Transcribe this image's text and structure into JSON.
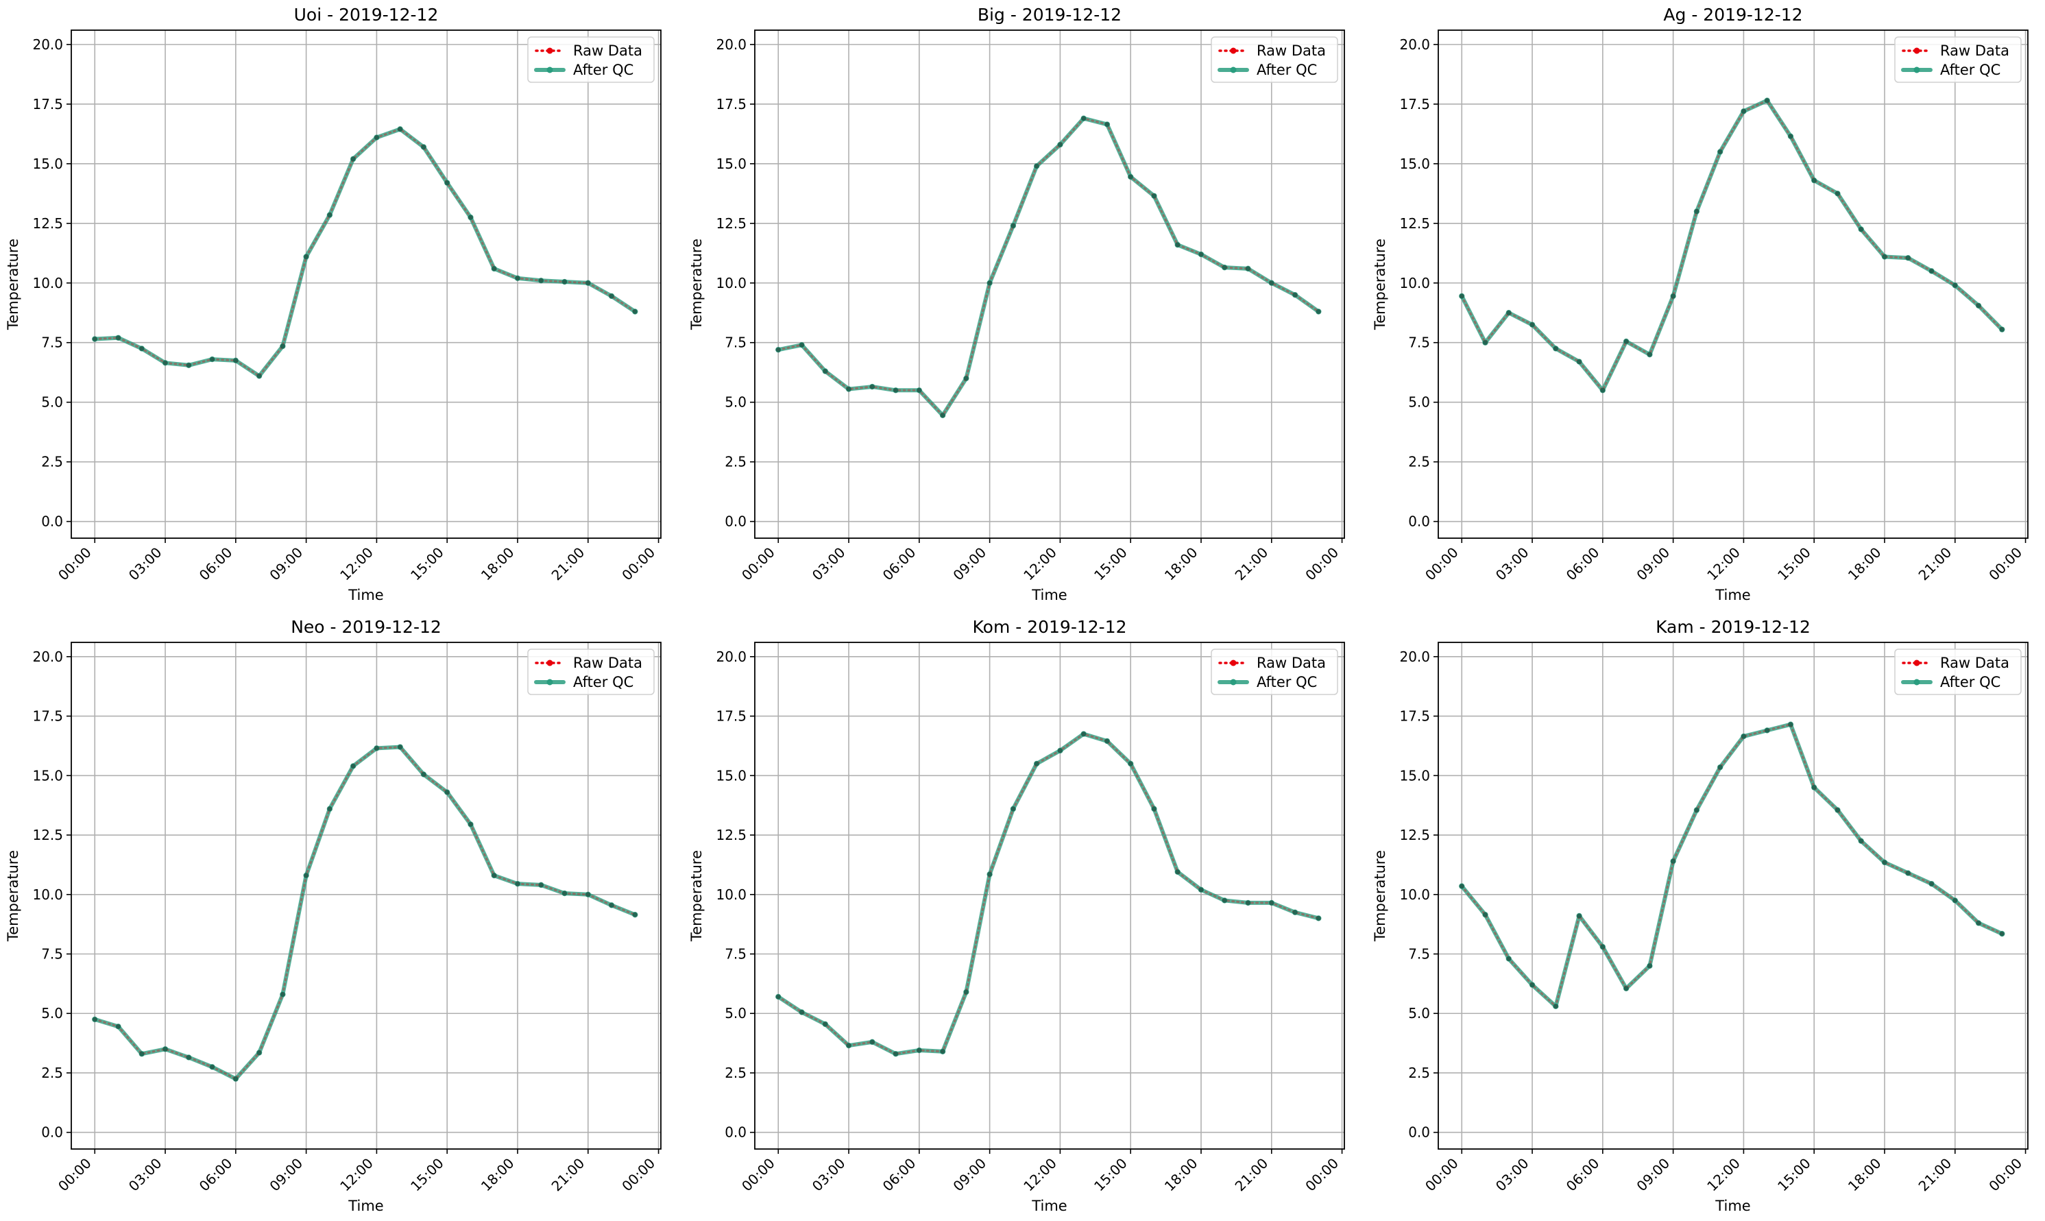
{
  "chart_data": [
    {
      "type": "line",
      "title": "Uoi - 2019-12-12",
      "xlabel": "Time",
      "ylabel": "Temperature",
      "ylim": [
        -0.7,
        20.6
      ],
      "xlim_hours": [
        -1.0,
        24.1
      ],
      "yticks": [
        "0.0",
        "2.5",
        "5.0",
        "7.5",
        "10.0",
        "12.5",
        "15.0",
        "17.5",
        "20.0"
      ],
      "xticks": [
        "00:00",
        "03:00",
        "06:00",
        "09:00",
        "12:00",
        "15:00",
        "18:00",
        "21:00",
        "00:00"
      ],
      "grid": true,
      "legend": "top-right",
      "x": [
        "00:00",
        "01:00",
        "02:00",
        "03:00",
        "04:00",
        "05:00",
        "06:00",
        "07:00",
        "08:00",
        "09:00",
        "10:00",
        "11:00",
        "12:00",
        "13:00",
        "14:00",
        "15:00",
        "16:00",
        "17:00",
        "18:00",
        "19:00",
        "20:00",
        "21:00",
        "22:00",
        "23:00"
      ],
      "series": [
        {
          "name": "Raw Data",
          "color": "#e8000b",
          "style": "dotted",
          "values": [
            7.65,
            7.7,
            7.25,
            6.65,
            6.55,
            6.8,
            6.75,
            6.1,
            7.35,
            11.1,
            12.85,
            15.2,
            16.1,
            16.45,
            15.7,
            14.2,
            12.75,
            10.6,
            10.2,
            10.1,
            10.05,
            10.0,
            9.45,
            8.8
          ]
        },
        {
          "name": "After QC",
          "color": "#2a9d7f",
          "style": "solid",
          "values": [
            7.65,
            7.7,
            7.25,
            6.65,
            6.55,
            6.8,
            6.75,
            6.1,
            7.35,
            11.1,
            12.85,
            15.2,
            16.1,
            16.45,
            15.7,
            14.2,
            12.75,
            10.6,
            10.2,
            10.1,
            10.05,
            10.0,
            9.45,
            8.8
          ]
        }
      ]
    },
    {
      "type": "line",
      "title": "Big - 2019-12-12",
      "xlabel": "Time",
      "ylabel": "Temperature",
      "ylim": [
        -0.7,
        20.6
      ],
      "xlim_hours": [
        -1.0,
        24.1
      ],
      "yticks": [
        "0.0",
        "2.5",
        "5.0",
        "7.5",
        "10.0",
        "12.5",
        "15.0",
        "17.5",
        "20.0"
      ],
      "xticks": [
        "00:00",
        "03:00",
        "06:00",
        "09:00",
        "12:00",
        "15:00",
        "18:00",
        "21:00",
        "00:00"
      ],
      "grid": true,
      "legend": "top-right",
      "x": [
        "00:00",
        "01:00",
        "02:00",
        "03:00",
        "04:00",
        "05:00",
        "06:00",
        "07:00",
        "08:00",
        "09:00",
        "10:00",
        "11:00",
        "12:00",
        "13:00",
        "14:00",
        "15:00",
        "16:00",
        "17:00",
        "18:00",
        "19:00",
        "20:00",
        "21:00",
        "22:00",
        "23:00"
      ],
      "series": [
        {
          "name": "Raw Data",
          "color": "#e8000b",
          "style": "dotted",
          "values": [
            7.2,
            7.4,
            6.3,
            5.55,
            5.65,
            5.5,
            5.5,
            4.45,
            6.0,
            10.0,
            12.4,
            14.9,
            15.8,
            16.9,
            16.65,
            14.45,
            13.65,
            11.6,
            11.2,
            10.65,
            10.6,
            10.0,
            9.5,
            8.8
          ]
        },
        {
          "name": "After QC",
          "color": "#2a9d7f",
          "style": "solid",
          "values": [
            7.2,
            7.4,
            6.3,
            5.55,
            5.65,
            5.5,
            5.5,
            4.45,
            6.0,
            10.0,
            12.4,
            14.9,
            15.8,
            16.9,
            16.65,
            14.45,
            13.65,
            11.6,
            11.2,
            10.65,
            10.6,
            10.0,
            9.5,
            8.8
          ]
        }
      ]
    },
    {
      "type": "line",
      "title": "Ag - 2019-12-12",
      "xlabel": "Time",
      "ylabel": "Temperature",
      "ylim": [
        -0.7,
        20.6
      ],
      "xlim_hours": [
        -1.0,
        24.1
      ],
      "yticks": [
        "0.0",
        "2.5",
        "5.0",
        "7.5",
        "10.0",
        "12.5",
        "15.0",
        "17.5",
        "20.0"
      ],
      "xticks": [
        "00:00",
        "03:00",
        "06:00",
        "09:00",
        "12:00",
        "15:00",
        "18:00",
        "21:00",
        "00:00"
      ],
      "grid": true,
      "legend": "top-right",
      "x": [
        "00:00",
        "01:00",
        "02:00",
        "03:00",
        "04:00",
        "05:00",
        "06:00",
        "07:00",
        "08:00",
        "09:00",
        "10:00",
        "11:00",
        "12:00",
        "13:00",
        "14:00",
        "15:00",
        "16:00",
        "17:00",
        "18:00",
        "19:00",
        "20:00",
        "21:00",
        "22:00",
        "23:00"
      ],
      "series": [
        {
          "name": "Raw Data",
          "color": "#e8000b",
          "style": "dotted",
          "values": [
            9.45,
            7.5,
            8.75,
            8.25,
            7.25,
            6.7,
            5.5,
            7.55,
            7.0,
            9.45,
            13.0,
            15.5,
            17.2,
            17.65,
            16.15,
            14.3,
            13.75,
            12.25,
            11.1,
            11.05,
            10.5,
            9.9,
            9.05,
            8.05
          ]
        },
        {
          "name": "After QC",
          "color": "#2a9d7f",
          "style": "solid",
          "values": [
            9.45,
            7.5,
            8.75,
            8.25,
            7.25,
            6.7,
            5.5,
            7.55,
            7.0,
            9.45,
            13.0,
            15.5,
            17.2,
            17.65,
            16.15,
            14.3,
            13.75,
            12.25,
            11.1,
            11.05,
            10.5,
            9.9,
            9.05,
            8.05
          ]
        }
      ]
    },
    {
      "type": "line",
      "title": "Neo - 2019-12-12",
      "xlabel": "Time",
      "ylabel": "Temperature",
      "ylim": [
        -0.7,
        20.6
      ],
      "xlim_hours": [
        -1.0,
        24.1
      ],
      "yticks": [
        "0.0",
        "2.5",
        "5.0",
        "7.5",
        "10.0",
        "12.5",
        "15.0",
        "17.5",
        "20.0"
      ],
      "xticks": [
        "00:00",
        "03:00",
        "06:00",
        "09:00",
        "12:00",
        "15:00",
        "18:00",
        "21:00",
        "00:00"
      ],
      "grid": true,
      "legend": "top-right",
      "x": [
        "00:00",
        "01:00",
        "02:00",
        "03:00",
        "04:00",
        "05:00",
        "06:00",
        "07:00",
        "08:00",
        "09:00",
        "10:00",
        "11:00",
        "12:00",
        "13:00",
        "14:00",
        "15:00",
        "16:00",
        "17:00",
        "18:00",
        "19:00",
        "20:00",
        "21:00",
        "22:00",
        "23:00"
      ],
      "series": [
        {
          "name": "Raw Data",
          "color": "#e8000b",
          "style": "dotted",
          "values": [
            4.75,
            4.45,
            3.3,
            3.5,
            3.15,
            2.75,
            2.25,
            3.35,
            5.8,
            10.8,
            13.6,
            15.4,
            16.15,
            16.2,
            15.05,
            14.3,
            12.95,
            10.8,
            10.45,
            10.4,
            10.05,
            10.0,
            9.55,
            9.15
          ]
        },
        {
          "name": "After QC",
          "color": "#2a9d7f",
          "style": "solid",
          "values": [
            4.75,
            4.45,
            3.3,
            3.5,
            3.15,
            2.75,
            2.25,
            3.35,
            5.8,
            10.8,
            13.6,
            15.4,
            16.15,
            16.2,
            15.05,
            14.3,
            12.95,
            10.8,
            10.45,
            10.4,
            10.05,
            10.0,
            9.55,
            9.15
          ]
        }
      ]
    },
    {
      "type": "line",
      "title": "Kom - 2019-12-12",
      "xlabel": "Time",
      "ylabel": "Temperature",
      "ylim": [
        -0.7,
        20.6
      ],
      "xlim_hours": [
        -1.0,
        24.1
      ],
      "yticks": [
        "0.0",
        "2.5",
        "5.0",
        "7.5",
        "10.0",
        "12.5",
        "15.0",
        "17.5",
        "20.0"
      ],
      "xticks": [
        "00:00",
        "03:00",
        "06:00",
        "09:00",
        "12:00",
        "15:00",
        "18:00",
        "21:00",
        "00:00"
      ],
      "grid": true,
      "legend": "top-right",
      "x": [
        "00:00",
        "01:00",
        "02:00",
        "03:00",
        "04:00",
        "05:00",
        "06:00",
        "07:00",
        "08:00",
        "09:00",
        "10:00",
        "11:00",
        "12:00",
        "13:00",
        "14:00",
        "15:00",
        "16:00",
        "17:00",
        "18:00",
        "19:00",
        "20:00",
        "21:00",
        "22:00",
        "23:00"
      ],
      "series": [
        {
          "name": "Raw Data",
          "color": "#e8000b",
          "style": "dotted",
          "values": [
            5.7,
            5.05,
            4.55,
            3.65,
            3.8,
            3.3,
            3.45,
            3.4,
            5.9,
            10.85,
            13.6,
            15.5,
            16.05,
            16.75,
            16.45,
            15.5,
            13.6,
            10.95,
            10.2,
            9.75,
            9.65,
            9.65,
            9.25,
            9.0
          ]
        },
        {
          "name": "After QC",
          "color": "#2a9d7f",
          "style": "solid",
          "values": [
            5.7,
            5.05,
            4.55,
            3.65,
            3.8,
            3.3,
            3.45,
            3.4,
            5.9,
            10.85,
            13.6,
            15.5,
            16.05,
            16.75,
            16.45,
            15.5,
            13.6,
            10.95,
            10.2,
            9.75,
            9.65,
            9.65,
            9.25,
            9.0
          ]
        }
      ]
    },
    {
      "type": "line",
      "title": "Kam - 2019-12-12",
      "xlabel": "Time",
      "ylabel": "Temperature",
      "ylim": [
        -0.7,
        20.6
      ],
      "xlim_hours": [
        -1.0,
        24.1
      ],
      "yticks": [
        "0.0",
        "2.5",
        "5.0",
        "7.5",
        "10.0",
        "12.5",
        "15.0",
        "17.5",
        "20.0"
      ],
      "xticks": [
        "00:00",
        "03:00",
        "06:00",
        "09:00",
        "12:00",
        "15:00",
        "18:00",
        "21:00",
        "00:00"
      ],
      "grid": true,
      "legend": "top-right",
      "x": [
        "00:00",
        "01:00",
        "02:00",
        "03:00",
        "04:00",
        "05:00",
        "06:00",
        "07:00",
        "08:00",
        "09:00",
        "10:00",
        "11:00",
        "12:00",
        "13:00",
        "14:00",
        "15:00",
        "16:00",
        "17:00",
        "18:00",
        "19:00",
        "20:00",
        "21:00",
        "22:00",
        "23:00"
      ],
      "series": [
        {
          "name": "Raw Data",
          "color": "#e8000b",
          "style": "dotted",
          "values": [
            10.35,
            9.15,
            7.3,
            6.2,
            5.3,
            9.1,
            7.8,
            6.05,
            7.0,
            11.4,
            13.55,
            15.35,
            16.65,
            16.9,
            17.15,
            14.5,
            13.55,
            12.25,
            11.35,
            10.9,
            10.45,
            9.75,
            8.8,
            8.35
          ]
        },
        {
          "name": "After QC",
          "color": "#2a9d7f",
          "style": "solid",
          "values": [
            10.35,
            9.15,
            7.3,
            6.2,
            5.3,
            9.1,
            7.8,
            6.05,
            7.0,
            11.4,
            13.55,
            15.35,
            16.65,
            16.9,
            17.15,
            14.5,
            13.55,
            12.25,
            11.35,
            10.9,
            10.45,
            9.75,
            8.8,
            8.35
          ]
        }
      ]
    }
  ]
}
